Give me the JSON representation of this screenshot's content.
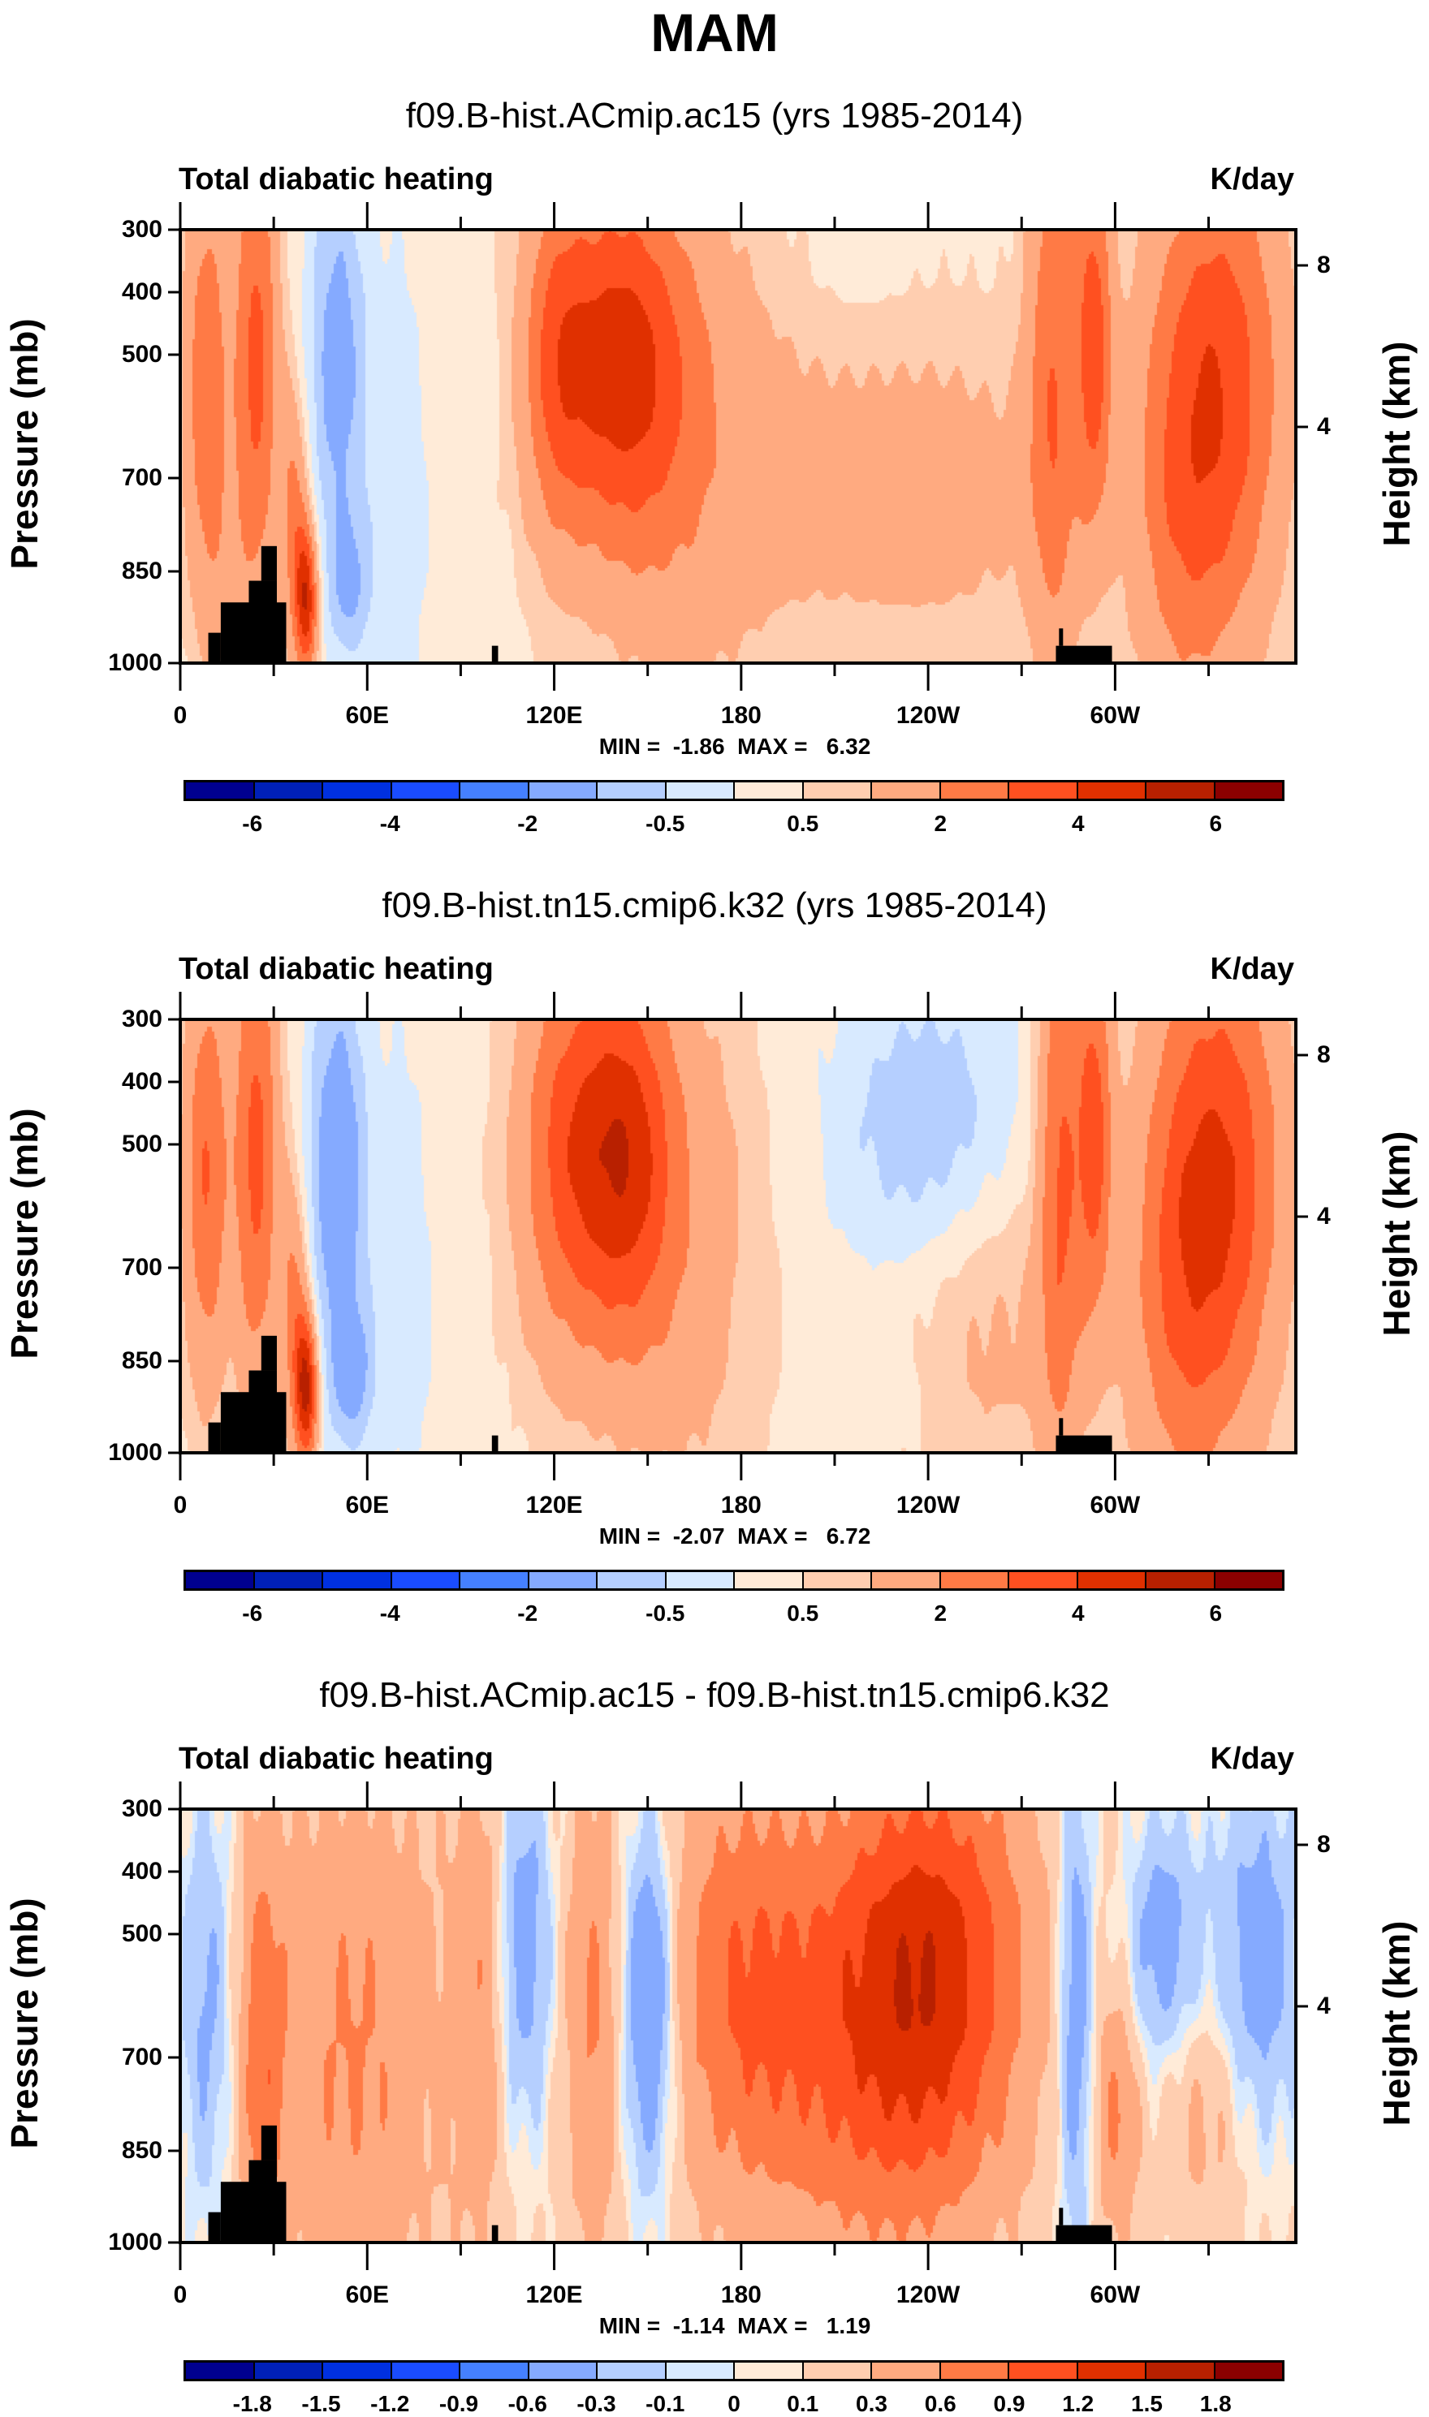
{
  "title": "MAM",
  "colors": [
    "#00008f",
    "#0020b8",
    "#0030e0",
    "#1a4cff",
    "#4580ff",
    "#85aaff",
    "#b5cfff",
    "#d8eaff",
    "#ffebd8",
    "#ffceb0",
    "#ffaa80",
    "#ff7a45",
    "#ff5020",
    "#e03000",
    "#b82000",
    "#8b0000"
  ],
  "chart_data": [
    {
      "type": "heatmap",
      "title": "f09.B-hist.ACmip.ac15 (yrs 1985-2014)",
      "left_string": "Total diabatic heating",
      "right_string": "K/day",
      "xlabel": "",
      "ylabel": "Pressure (mb)",
      "ylabel_right": "Height (km)",
      "xticks": [
        "0",
        "60E",
        "120E",
        "180",
        "120W",
        "60W"
      ],
      "yticks": [
        "300",
        "400",
        "500",
        "700",
        "850",
        "1000"
      ],
      "yticks_right": [
        "8",
        "4"
      ],
      "xlim": [
        0,
        360
      ],
      "ylim": [
        1000,
        300
      ],
      "stats": "MIN =  -1.86  MAX =   6.32",
      "min": -1.86,
      "max": 6.32,
      "levels": [
        -6,
        -5,
        -4,
        -3,
        -2,
        -1,
        -0.5,
        0,
        0.5,
        1,
        2,
        3,
        4,
        5,
        6
      ],
      "colorbar_labels": [
        "-6",
        "-4",
        "-2",
        "-0.5",
        "0.5",
        "2",
        "4",
        "6"
      ]
    },
    {
      "type": "heatmap",
      "title": "f09.B-hist.tn15.cmip6.k32 (yrs 1985-2014)",
      "left_string": "Total diabatic heating",
      "right_string": "K/day",
      "xlabel": "",
      "ylabel": "Pressure (mb)",
      "ylabel_right": "Height (km)",
      "xticks": [
        "0",
        "60E",
        "120E",
        "180",
        "120W",
        "60W"
      ],
      "yticks": [
        "300",
        "400",
        "500",
        "700",
        "850",
        "1000"
      ],
      "yticks_right": [
        "8",
        "4"
      ],
      "xlim": [
        0,
        360
      ],
      "ylim": [
        1000,
        300
      ],
      "stats": "MIN =  -2.07  MAX =   6.72",
      "min": -2.07,
      "max": 6.72,
      "levels": [
        -6,
        -5,
        -4,
        -3,
        -2,
        -1,
        -0.5,
        0,
        0.5,
        1,
        2,
        3,
        4,
        5,
        6
      ],
      "colorbar_labels": [
        "-6",
        "-4",
        "-2",
        "-0.5",
        "0.5",
        "2",
        "4",
        "6"
      ]
    },
    {
      "type": "heatmap",
      "title": "f09.B-hist.ACmip.ac15 - f09.B-hist.tn15.cmip6.k32",
      "left_string": "Total diabatic heating",
      "right_string": "K/day",
      "xlabel": "",
      "ylabel": "Pressure (mb)",
      "ylabel_right": "Height (km)",
      "xticks": [
        "0",
        "60E",
        "120E",
        "180",
        "120W",
        "60W"
      ],
      "yticks": [
        "300",
        "400",
        "500",
        "700",
        "850",
        "1000"
      ],
      "yticks_right": [
        "8",
        "4"
      ],
      "xlim": [
        0,
        360
      ],
      "ylim": [
        1000,
        300
      ],
      "stats": "MIN =  -1.14  MAX =   1.19",
      "min": -1.14,
      "max": 1.19,
      "levels": [
        -1.8,
        -1.5,
        -1.2,
        -0.9,
        -0.6,
        -0.3,
        -0.1,
        0,
        0.1,
        0.3,
        0.6,
        0.9,
        1.2,
        1.5,
        1.8
      ],
      "colorbar_labels": [
        "-1.8",
        "-1.5",
        "-1.2",
        "-0.9",
        "-0.6",
        "-0.3",
        "-0.1",
        "0",
        "0.1",
        "0.3",
        "0.6",
        "0.9",
        "1.2",
        "1.5",
        "1.8"
      ]
    }
  ]
}
